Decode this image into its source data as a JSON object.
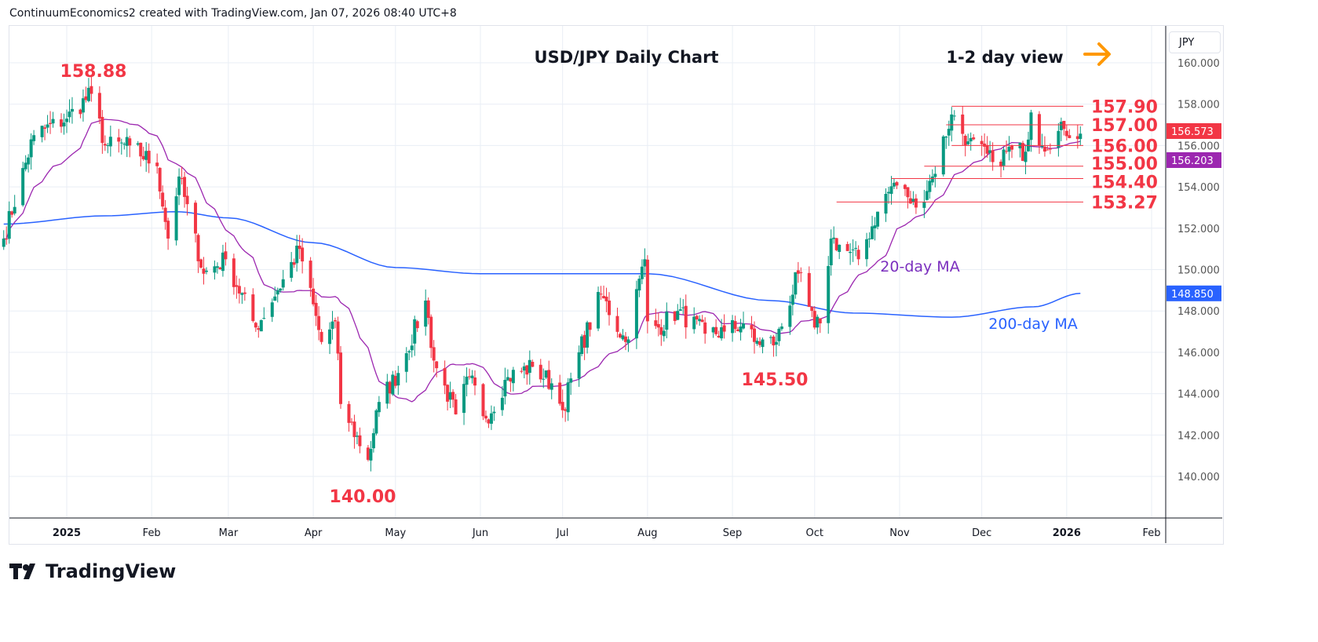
{
  "header": "ContinuumEconomics2 created with TradingView.com, Jan 07, 2026 08:40 UTC+8",
  "brand": "TradingView",
  "currency": "JPY",
  "chart_data": {
    "type": "candlestick",
    "title": "USD/JPY Daily Chart",
    "view_note": "1-2 day view",
    "ylim": [
      138,
      162
    ],
    "y_ticks": [
      140,
      142,
      144,
      146,
      148,
      150,
      152,
      154,
      156,
      158,
      160
    ],
    "x_ticks": [
      {
        "label": "2025",
        "date": "2025-01-01"
      },
      {
        "label": "Feb",
        "date": "2025-02-01"
      },
      {
        "label": "Mar",
        "date": "2025-03-01"
      },
      {
        "label": "Apr",
        "date": "2025-04-01"
      },
      {
        "label": "May",
        "date": "2025-05-01"
      },
      {
        "label": "Jun",
        "date": "2025-06-01"
      },
      {
        "label": "Jul",
        "date": "2025-07-01"
      },
      {
        "label": "Aug",
        "date": "2025-08-01"
      },
      {
        "label": "Sep",
        "date": "2025-09-01"
      },
      {
        "label": "Oct",
        "date": "2025-10-01"
      },
      {
        "label": "Nov",
        "date": "2025-11-01"
      },
      {
        "label": "Dec",
        "date": "2025-12-01"
      },
      {
        "label": "2026",
        "date": "2026-01-01"
      },
      {
        "label": "Feb",
        "date": "2026-02-01"
      }
    ],
    "close_anchors": [
      [
        "2024-12-09",
        151.5
      ],
      [
        "2024-12-20",
        156.5
      ],
      [
        "2025-01-01",
        157.3
      ],
      [
        "2025-01-10",
        158.5
      ],
      [
        "2025-01-15",
        156
      ],
      [
        "2025-01-24",
        156
      ],
      [
        "2025-02-03",
        155
      ],
      [
        "2025-02-07",
        151.5
      ],
      [
        "2025-02-11",
        154.5
      ],
      [
        "2025-02-20",
        149.8
      ],
      [
        "2025-02-28",
        150.5
      ],
      [
        "2025-03-11",
        147.2
      ],
      [
        "2025-03-19",
        149
      ],
      [
        "2025-03-27",
        151
      ],
      [
        "2025-04-04",
        146.5
      ],
      [
        "2025-04-09",
        147.5
      ],
      [
        "2025-04-11",
        143.5
      ],
      [
        "2025-04-21",
        140.8
      ],
      [
        "2025-04-25",
        143.6
      ],
      [
        "2025-05-02",
        145
      ],
      [
        "2025-05-12",
        148.5
      ],
      [
        "2025-05-15",
        145.6
      ],
      [
        "2025-05-23",
        143
      ],
      [
        "2025-05-28",
        144.8
      ],
      [
        "2025-06-03",
        142.8
      ],
      [
        "2025-06-11",
        144.8
      ],
      [
        "2025-06-20",
        145.3
      ],
      [
        "2025-06-27",
        144.5
      ],
      [
        "2025-07-01",
        143.2
      ],
      [
        "2025-07-07",
        146
      ],
      [
        "2025-07-15",
        148.8
      ],
      [
        "2025-07-24",
        146.5
      ],
      [
        "2025-07-31",
        150.5
      ],
      [
        "2025-08-01",
        147.5
      ],
      [
        "2025-08-05",
        147.2
      ],
      [
        "2025-08-12",
        148
      ],
      [
        "2025-08-22",
        146.9
      ],
      [
        "2025-08-29",
        147
      ],
      [
        "2025-09-05",
        147.4
      ],
      [
        "2025-09-09",
        146.5
      ],
      [
        "2025-09-17",
        146.5
      ],
      [
        "2025-09-25",
        149.8
      ],
      [
        "2025-10-01",
        147.2
      ],
      [
        "2025-10-03",
        147.4
      ],
      [
        "2025-10-07",
        151.5
      ],
      [
        "2025-10-10",
        151.2
      ],
      [
        "2025-10-17",
        150.5
      ],
      [
        "2025-10-24",
        152.8
      ],
      [
        "2025-10-30",
        154.2
      ],
      [
        "2025-11-04",
        153.5
      ],
      [
        "2025-11-07",
        153
      ],
      [
        "2025-11-13",
        154.5
      ],
      [
        "2025-11-20",
        157.5
      ],
      [
        "2025-11-26",
        156.2
      ],
      [
        "2025-12-05",
        155.2
      ],
      [
        "2025-12-12",
        155.8
      ],
      [
        "2025-12-17",
        155.7
      ],
      [
        "2025-12-19",
        157.6
      ],
      [
        "2025-12-23",
        156
      ],
      [
        "2025-12-31",
        156.8
      ],
      [
        "2026-01-06",
        156.573
      ]
    ],
    "ma200_anchors": [
      [
        "2024-12-09",
        152.2
      ],
      [
        "2025-01-15",
        152.6
      ],
      [
        "2025-02-10",
        152.8
      ],
      [
        "2025-03-01",
        152.5
      ],
      [
        "2025-04-01",
        151.3
      ],
      [
        "2025-05-01",
        150.1
      ],
      [
        "2025-06-01",
        149.8
      ],
      [
        "2025-08-01",
        149.8
      ],
      [
        "2025-09-15",
        148.5
      ],
      [
        "2025-10-15",
        147.9
      ],
      [
        "2025-11-20",
        147.7
      ],
      [
        "2025-12-20",
        148.2
      ],
      [
        "2026-01-06",
        148.85
      ]
    ],
    "levels": [
      {
        "label": "157.90",
        "value": 157.9,
        "from": "2025-11-20"
      },
      {
        "label": "157.00",
        "value": 157.0,
        "from": "2025-11-18"
      },
      {
        "label": "156.00",
        "value": 156.0,
        "from": "2025-11-20"
      },
      {
        "label": "155.00",
        "value": 155.0,
        "from": "2025-11-10"
      },
      {
        "label": "154.40",
        "value": 154.4,
        "from": "2025-10-29"
      },
      {
        "label": "153.27",
        "value": 153.27,
        "from": "2025-10-09"
      }
    ],
    "annotations": [
      {
        "text": "158.88",
        "date": "2025-01-10",
        "value": 158.88
      },
      {
        "text": "140.00",
        "date": "2025-04-22",
        "value": 140.0
      },
      {
        "text": "145.50",
        "date": "2025-09-17",
        "value": 145.5
      },
      {
        "text": "20-day MA",
        "color": "#7b2fbe"
      },
      {
        "text": "200-day MA",
        "color": "#2962ff"
      }
    ],
    "last_price": "156.573",
    "ma20_last": "156.203",
    "ma200_last": "148.850",
    "colors": {
      "up": "#089981",
      "down": "#f23645",
      "ma20": "#9c27b0",
      "ma200": "#2962ff",
      "level": "#f23645",
      "arrow": "#ff9800"
    }
  }
}
